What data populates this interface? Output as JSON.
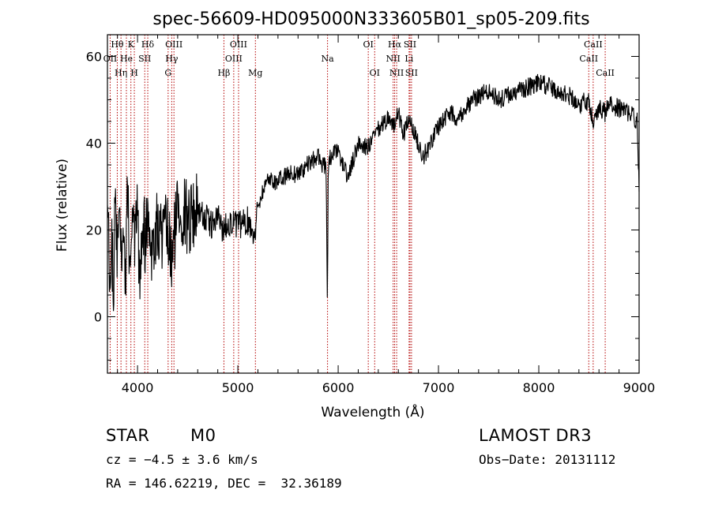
{
  "chart_data": {
    "type": "line",
    "title": "spec-56609-HD095000N333605B01_sp05-209.fits",
    "xlabel": "Wavelength (Å)",
    "ylabel": "Flux (relative)",
    "xlim": [
      3700,
      9000
    ],
    "ylim": [
      -13,
      65
    ],
    "x_ticks": [
      4000,
      5000,
      6000,
      7000,
      8000,
      9000
    ],
    "y_ticks": [
      0,
      20,
      40,
      60
    ],
    "x_tick_labels": [
      "4000",
      "5000",
      "6000",
      "7000",
      "8000",
      "9000"
    ],
    "y_tick_labels": [
      "0",
      "20",
      "40",
      "60"
    ],
    "series": [
      {
        "name": "flux",
        "x": [
          3700,
          3720,
          3740,
          3760,
          3780,
          3800,
          3820,
          3840,
          3860,
          3880,
          3900,
          3920,
          3950,
          3980,
          4000,
          4020,
          4050,
          4080,
          4100,
          4150,
          4200,
          4250,
          4300,
          4340,
          4400,
          4450,
          4500,
          4600,
          4700,
          4750,
          4800,
          4861,
          4900,
          5000,
          5100,
          5175,
          5200,
          5300,
          5400,
          5500,
          5600,
          5700,
          5800,
          5850,
          5880,
          5893,
          5900,
          5920,
          6000,
          6100,
          6200,
          6300,
          6400,
          6500,
          6563,
          6600,
          6650,
          6700,
          6750,
          6800,
          6850,
          6900,
          7000,
          7100,
          7200,
          7300,
          7400,
          7500,
          7600,
          7700,
          7800,
          7900,
          8000,
          8100,
          8200,
          8300,
          8400,
          8500,
          8542,
          8600,
          8662,
          8700,
          8800,
          8900,
          8950,
          8980,
          9000
        ],
        "y": [
          28,
          12,
          20,
          5,
          30,
          15,
          25,
          8,
          22,
          10,
          28,
          14,
          18,
          16,
          26,
          10,
          22,
          18,
          24,
          15,
          21,
          18,
          20,
          12,
          26,
          24,
          23,
          25,
          22,
          21,
          23,
          20,
          22,
          21,
          22,
          19,
          26,
          32,
          31,
          33,
          33,
          35,
          37,
          35,
          34,
          2,
          32,
          37,
          38,
          32,
          40,
          39,
          43,
          46,
          44,
          47,
          42,
          45,
          43,
          40,
          37,
          39,
          44,
          47,
          46,
          49,
          51,
          52,
          50,
          51,
          52,
          53,
          54,
          53,
          52,
          51,
          49,
          50,
          45,
          48,
          47,
          49,
          48,
          47,
          46,
          45,
          30
        ]
      }
    ],
    "lines": [
      {
        "label": "OII",
        "x": 3727,
        "row": 1
      },
      {
        "label": "Hθ",
        "x": 3798,
        "row": 0
      },
      {
        "label": "Hη",
        "x": 3835,
        "row": 2
      },
      {
        "label": "He",
        "x": 3889,
        "row": 1
      },
      {
        "label": "K",
        "x": 3934,
        "row": 0
      },
      {
        "label": "H",
        "x": 3968,
        "row": 2
      },
      {
        "label": "SII",
        "x": 4072,
        "row": 1
      },
      {
        "label": "Hδ",
        "x": 4102,
        "row": 0
      },
      {
        "label": "G",
        "x": 4305,
        "row": 2
      },
      {
        "label": "Hγ",
        "x": 4341,
        "row": 1
      },
      {
        "label": "OIII",
        "x": 4363,
        "row": 0
      },
      {
        "label": "Hβ",
        "x": 4861,
        "row": 2
      },
      {
        "label": "OIII",
        "x": 4959,
        "row": 1
      },
      {
        "label": "OIII",
        "x": 5007,
        "row": 0
      },
      {
        "label": "Mg",
        "x": 5175,
        "row": 2
      },
      {
        "label": "Na",
        "x": 5894,
        "row": 1
      },
      {
        "label": "OI",
        "x": 6300,
        "row": 0
      },
      {
        "label": "OI",
        "x": 6364,
        "row": 2
      },
      {
        "label": "NII",
        "x": 6548,
        "row": 1
      },
      {
        "label": "Hα",
        "x": 6563,
        "row": 0
      },
      {
        "label": "NII",
        "x": 6583,
        "row": 2
      },
      {
        "label": "Li",
        "x": 6707,
        "row": 1
      },
      {
        "label": "SII",
        "x": 6716,
        "row": 0
      },
      {
        "label": "SII",
        "x": 6731,
        "row": 2
      },
      {
        "label": "CaII",
        "x": 8498,
        "row": 1
      },
      {
        "label": "CaII",
        "x": 8542,
        "row": 0
      },
      {
        "label": "CaII",
        "x": 8662,
        "row": 2
      }
    ],
    "colors": {
      "spectrum": "#000000",
      "lines": "#b30000"
    }
  },
  "info": {
    "class": "STAR",
    "subclass": "M0",
    "survey": "LAMOST DR3",
    "cz": "cz = −4.5 ± 3.6 km/s",
    "obs_date": "Obs−Date: 20131112",
    "coords": "RA = 146.62219, DEC =  32.36189"
  }
}
